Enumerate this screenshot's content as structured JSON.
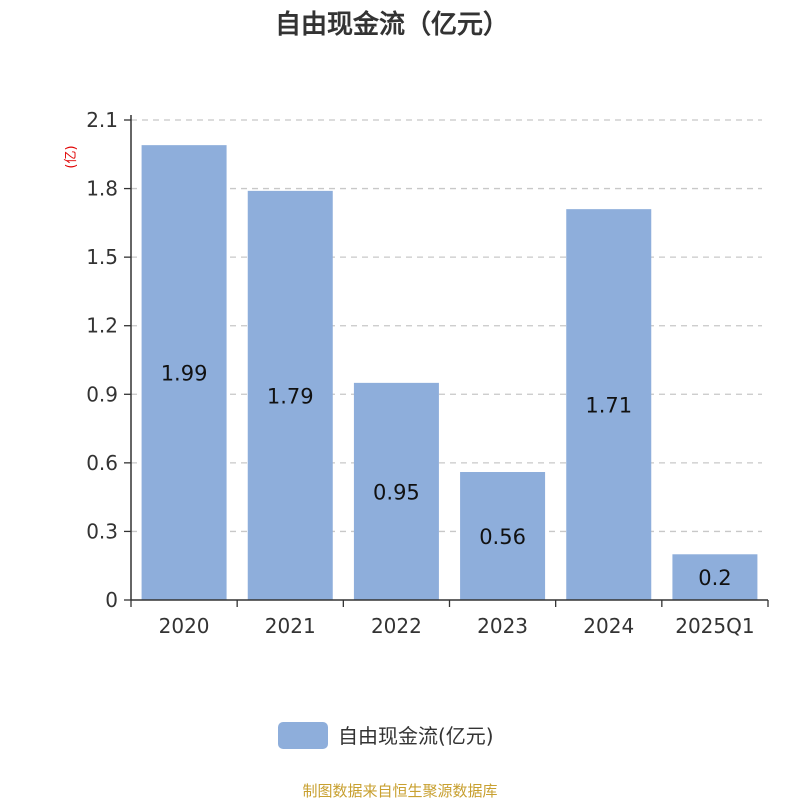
{
  "chart_data": {
    "type": "bar",
    "title": "自由现金流（亿元）",
    "ylabel": "(亿)",
    "categories": [
      "2020",
      "2021",
      "2022",
      "2023",
      "2024",
      "2025Q1"
    ],
    "series": [
      {
        "name": "自由现金流(亿元)",
        "values": [
          1.99,
          1.79,
          0.95,
          0.56,
          1.71,
          0.2
        ]
      }
    ],
    "data_labels": [
      "1.99",
      "1.79",
      "0.95",
      "0.56",
      "1.71",
      "0.2"
    ],
    "ylim": [
      0,
      2.1
    ],
    "yticks": [
      "0",
      "0.3",
      "0.6",
      "0.9",
      "1.2",
      "1.5",
      "1.8",
      "2.1"
    ],
    "grid": true,
    "legend_position": "bottom",
    "bar_color": "#8eaedb"
  },
  "source_text": "制图数据来自恒生聚源数据库"
}
